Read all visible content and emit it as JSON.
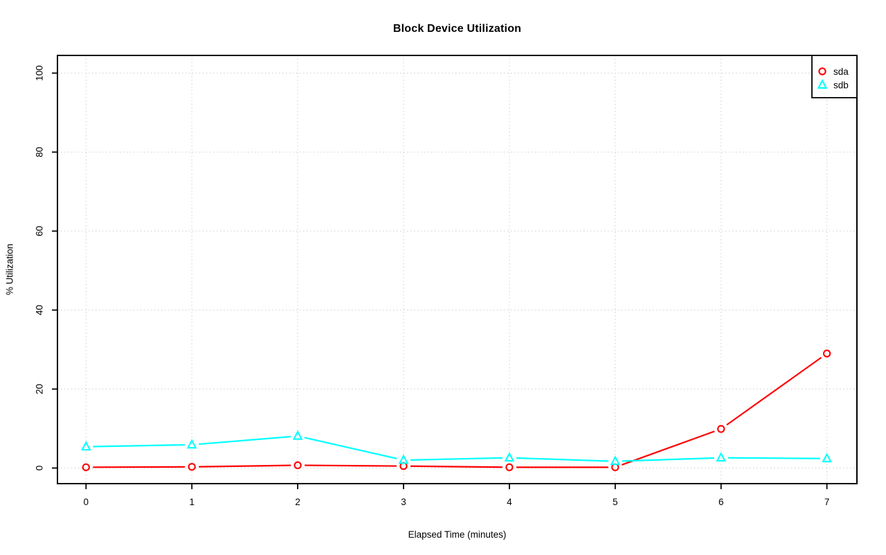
{
  "chart_data": {
    "type": "line",
    "title": "Block Device Utilization",
    "xlabel": "Elapsed Time (minutes)",
    "ylabel": "% Utilization",
    "x": [
      0,
      1,
      2,
      3,
      4,
      5,
      6,
      7
    ],
    "x_ticks": [
      "0",
      "1",
      "2",
      "3",
      "4",
      "5",
      "6",
      "7"
    ],
    "y_ticks": [
      "0",
      "20",
      "40",
      "60",
      "80",
      "100"
    ],
    "y_tick_values": [
      0,
      20,
      40,
      60,
      80,
      100
    ],
    "xlim": [
      0,
      7
    ],
    "ylim": [
      0,
      100
    ],
    "grid": true,
    "grid_style": "dotted",
    "grid_color": "#d3d3d3",
    "axis_color": "#000000",
    "background_color": "#ffffff",
    "legend_position": "topright",
    "legend": [
      "sda",
      "sdb"
    ],
    "series": [
      {
        "name": "sda",
        "color": "#ff0000",
        "marker": "circle",
        "values": [
          0.2,
          0.3,
          0.7,
          0.5,
          0.2,
          0.2,
          9.9,
          29.0
        ]
      },
      {
        "name": "sdb",
        "color": "#00ffff",
        "marker": "triangle",
        "values": [
          5.4,
          5.9,
          8.1,
          2.0,
          2.6,
          1.7,
          2.6,
          2.4
        ]
      }
    ]
  }
}
